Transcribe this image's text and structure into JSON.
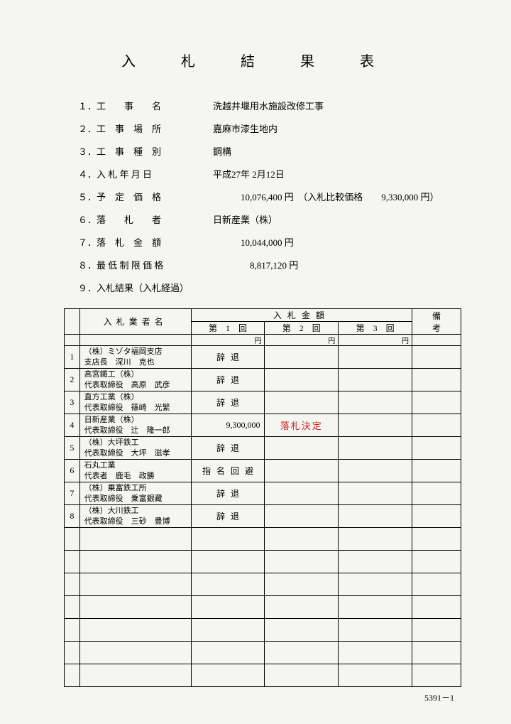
{
  "title": "入　札　結　果　表",
  "info": [
    {
      "label": "１．工　　事　　名",
      "value": "洗越井堰用水施設改修工事"
    },
    {
      "label": "２．工　事　場　所",
      "value": "嘉麻市漆生地内"
    },
    {
      "label": "３．工　事　種　別",
      "value": "鋼構"
    },
    {
      "label": "４．入 札 年 月 日",
      "value": "平成27年 2月12日"
    },
    {
      "label": "５．予　定　価　格",
      "value": "　　　10,076,400 円　（入札比較価格　　9,330,000 円）"
    },
    {
      "label": "６．落　　札　　者",
      "value": "日新産業（株）"
    },
    {
      "label": "７．落　札　金　額",
      "value": "　　　10,044,000 円"
    },
    {
      "label": "８．最 低 制 限 価 格",
      "value": "　　　　8,817,120 円"
    },
    {
      "label": "９．入札結果（入札経過）",
      "value": ""
    }
  ],
  "table": {
    "headers": {
      "bidder": "入札業者名",
      "amount": "入札金額",
      "round1": "第　1　回",
      "round2": "第　2　回",
      "round3": "第　3　回",
      "note": "備考",
      "yen": "円"
    },
    "rows": [
      {
        "num": "1",
        "name": "（株）ミゾタ福岡支店\n支店長　深川　克也",
        "r1": "辞退",
        "r1c": true,
        "r2": "",
        "r3": "",
        "note": ""
      },
      {
        "num": "2",
        "name": "高宮鐵工（株）\n代表取締役　高原　武彦",
        "r1": "辞退",
        "r1c": true,
        "r2": "",
        "r3": "",
        "note": ""
      },
      {
        "num": "3",
        "name": "直方工業（株）\n代表取締役　篠崎　光繁",
        "r1": "辞退",
        "r1c": true,
        "r2": "",
        "r3": "",
        "note": ""
      },
      {
        "num": "4",
        "name": "日新産業（株）\n代表取締役　辻　隆一郎",
        "r1": "9,300,000",
        "r1c": false,
        "r2": "落札決定",
        "r2dec": true,
        "r3": "",
        "note": ""
      },
      {
        "num": "5",
        "name": "（株）大坪鉄工\n代表取締役　大坪　滋孝",
        "r1": "辞退",
        "r1c": true,
        "r2": "",
        "r3": "",
        "note": ""
      },
      {
        "num": "6",
        "name": "石丸工業\n代表者　鹿毛　政勝",
        "r1": "指名回避",
        "r1c": true,
        "r2": "",
        "r3": "",
        "note": ""
      },
      {
        "num": "7",
        "name": "（株）乗富鉄工所\n代表取締役　乗富銀藏",
        "r1": "辞退",
        "r1c": true,
        "r2": "",
        "r3": "",
        "note": ""
      },
      {
        "num": "8",
        "name": "（株）大川鉄工\n代表取締役　三砂　豊博",
        "r1": "辞退",
        "r1c": true,
        "r2": "",
        "r3": "",
        "note": ""
      }
    ],
    "emptyRows": 7
  },
  "footer": "5391－1"
}
